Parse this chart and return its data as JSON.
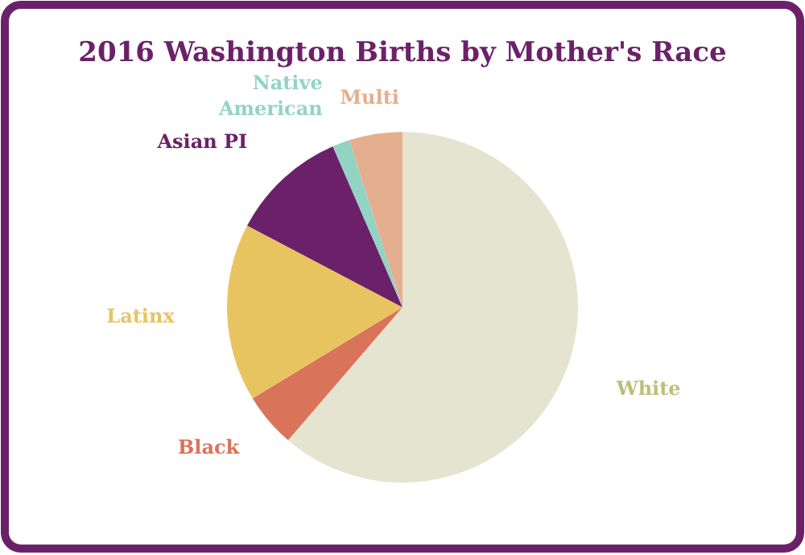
{
  "chart_data": {
    "type": "pie",
    "title": "2016 Washington Births by Mother's Race",
    "categories": [
      "White",
      "Black",
      "Latinx",
      "Asian PI",
      "Native American",
      "Multi"
    ],
    "values": [
      61.3,
      5.0,
      16.4,
      10.8,
      1.6,
      4.9
    ],
    "colors": [
      "#e5e4d0",
      "#d9735a",
      "#e8c460",
      "#6b2169",
      "#93d3c4",
      "#e4af8f"
    ]
  }
}
